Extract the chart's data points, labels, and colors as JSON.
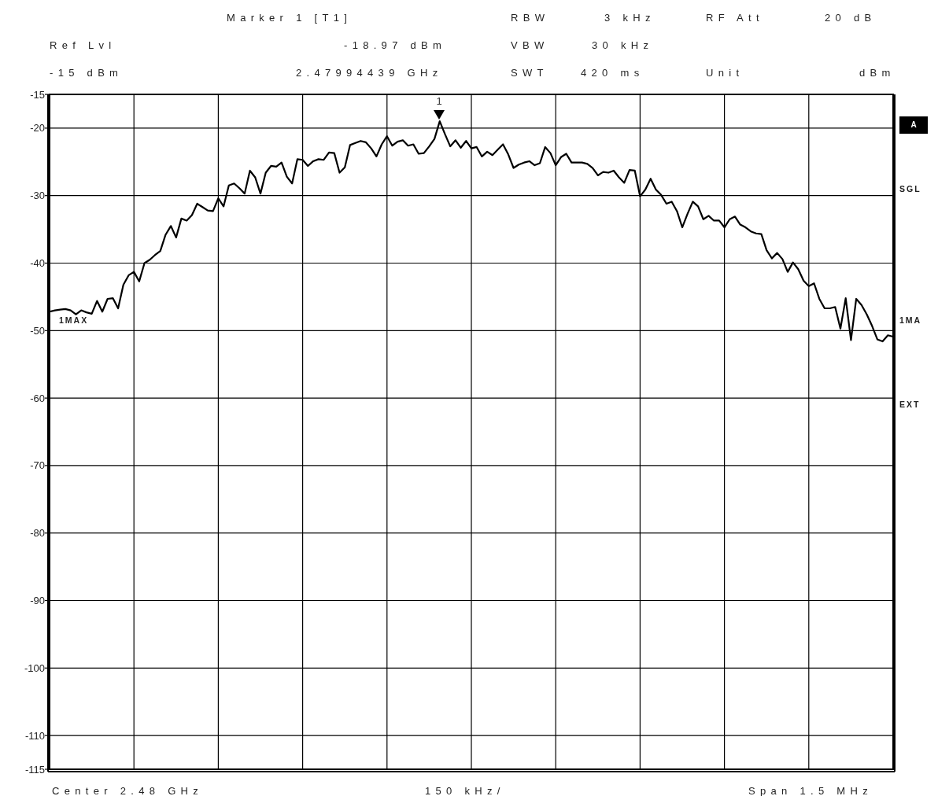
{
  "chart_data": {
    "type": "line",
    "categories": [
      null,
      null,
      null,
      null,
      null,
      null,
      null,
      null,
      null,
      null,
      null,
      null,
      null,
      null,
      null,
      null,
      null,
      null,
      null,
      null,
      null,
      null,
      null,
      null,
      null,
      null,
      null,
      null,
      null,
      null,
      null,
      null,
      null,
      null,
      null,
      null,
      null,
      null,
      null,
      null,
      null,
      null,
      null,
      null,
      null,
      null,
      null,
      null,
      null,
      null,
      null,
      null,
      null,
      null,
      null,
      null,
      null,
      null,
      null,
      null,
      null,
      null,
      null,
      null,
      null,
      null,
      null,
      null,
      null,
      null,
      null,
      null,
      null,
      null,
      null,
      null,
      null,
      null,
      null,
      null,
      null,
      null,
      null,
      null,
      null,
      null,
      null,
      null,
      null,
      null,
      null,
      null,
      null,
      null,
      null,
      null,
      null,
      null,
      null,
      null,
      null,
      null,
      null,
      null,
      null,
      null,
      null,
      null,
      null,
      null,
      null,
      null,
      null,
      null,
      null,
      null,
      null,
      null,
      null,
      null,
      null,
      null,
      null,
      null,
      null,
      null,
      null,
      null,
      null,
      null,
      null,
      null,
      null,
      null,
      null,
      null,
      null,
      null,
      null,
      null,
      null,
      null,
      null,
      null,
      null,
      null,
      null,
      null,
      null,
      null,
      null,
      null,
      null,
      null,
      null,
      null,
      null,
      null,
      null,
      null,
      null
    ],
    "ylim": [
      -115,
      -15
    ],
    "yticks": [
      -15,
      -20,
      -30,
      -40,
      -50,
      -60,
      -70,
      -80,
      -90,
      -100,
      -110,
      -115
    ],
    "grid": true,
    "tick_labels": "y",
    "series": [
      {
        "color": "#000000",
        "values": [
          -47.2,
          -47.0,
          -46.9,
          -46.8,
          -47.0,
          -47.6,
          -47.0,
          -47.3,
          -47.5,
          -45.6,
          -47.2,
          -45.3,
          -45.2,
          -46.7,
          -43.2,
          -41.8,
          -41.3,
          -42.7,
          -40.0,
          -39.5,
          -38.8,
          -38.2,
          -35.8,
          -34.5,
          -36.2,
          -33.4,
          -33.7,
          -32.9,
          -31.2,
          -31.7,
          -32.2,
          -32.3,
          -30.4,
          -31.6,
          -28.5,
          -28.2,
          -28.9,
          -29.7,
          -26.3,
          -27.3,
          -29.7,
          -26.6,
          -25.6,
          -25.7,
          -25.1,
          -27.2,
          -28.2,
          -24.6,
          -24.7,
          -25.6,
          -24.9,
          -24.6,
          -24.7,
          -23.6,
          -23.7,
          -26.6,
          -25.8,
          -22.5,
          -22.2,
          -21.9,
          -22.1,
          -23.0,
          -24.2,
          -22.4,
          -21.2,
          -22.6,
          -22.0,
          -21.8,
          -22.6,
          -22.4,
          -23.8,
          -23.7,
          -22.7,
          -21.6,
          -18.97,
          -20.9,
          -22.7,
          -21.8,
          -22.9,
          -21.9,
          -23.0,
          -22.8,
          -24.2,
          -23.5,
          -24.0,
          -23.2,
          -22.4,
          -23.9,
          -25.9,
          -25.4,
          -25.1,
          -24.9,
          -25.5,
          -25.2,
          -22.8,
          -23.7,
          -25.5,
          -24.3,
          -23.8,
          -25.1,
          -25.1,
          -25.1,
          -25.3,
          -25.9,
          -27.0,
          -26.5,
          -26.6,
          -26.3,
          -27.3,
          -28.1,
          -26.2,
          -26.3,
          -30.1,
          -29.1,
          -27.5,
          -29.1,
          -29.9,
          -31.2,
          -30.9,
          -32.3,
          -34.7,
          -32.7,
          -30.9,
          -31.6,
          -33.5,
          -33.0,
          -33.7,
          -33.7,
          -34.7,
          -33.5,
          -33.1,
          -34.3,
          -34.7,
          -35.3,
          -35.6,
          -35.7,
          -38.1,
          -39.3,
          -38.5,
          -39.4,
          -41.3,
          -39.9,
          -40.9,
          -42.6,
          -43.4,
          -43.0,
          -45.3,
          -46.7,
          -46.7,
          -46.5,
          -49.7,
          -45.2,
          -51.4,
          -45.3,
          -46.2,
          -47.6,
          -49.3,
          -51.3,
          -51.6,
          -50.7,
          -50.9
        ]
      }
    ],
    "annotations": [
      "Marker 1 [T1]",
      "RBW",
      "3 kHz",
      "RF Att",
      "20 dB",
      "Ref Lvl",
      "-18.97 dBm",
      "VBW",
      "30 kHz",
      "-15 dBm",
      "2.47994439 GHz",
      "SWT",
      "420 ms",
      "Unit",
      "dBm",
      "Center 2.48 GHz",
      "150 kHz/",
      "Span 1.5 MHz",
      "1MAX",
      "A",
      "SGL",
      "1MA",
      "EXT",
      "1"
    ]
  }
}
